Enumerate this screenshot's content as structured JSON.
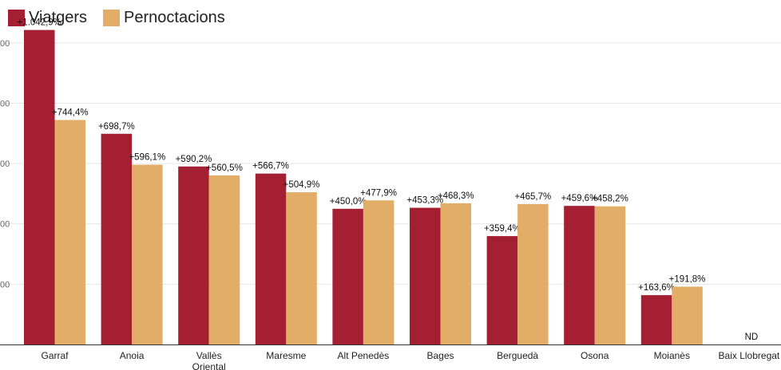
{
  "colors": {
    "viatgers": "#a51f32",
    "pernoctacions": "#e2ad66",
    "grid": "#e6e6e6",
    "axis": "#333333"
  },
  "chart_data": {
    "type": "bar",
    "title": "",
    "xlabel": "",
    "ylabel": "",
    "ylim": [
      0,
      1100
    ],
    "grid": true,
    "legend": "top-left",
    "y_ticks": [
      200,
      400,
      600,
      800,
      1000
    ],
    "y_tick_labels": [
      "00",
      "00",
      "00",
      "00",
      "00"
    ],
    "categories": [
      "Garraf",
      "Anoia",
      "Vallès Oriental",
      "Maresme",
      "Alt Penedès",
      "Bages",
      "Berguedà",
      "Osona",
      "Moianès",
      "Baix Llobregat"
    ],
    "category_lines": [
      [
        "Garraf"
      ],
      [
        "Anoia"
      ],
      [
        "Vallès",
        "Oriental"
      ],
      [
        "Maresme"
      ],
      [
        "Alt Penedès"
      ],
      [
        "Bages"
      ],
      [
        "Berguedà"
      ],
      [
        "Osona"
      ],
      [
        "Moianès"
      ],
      [
        "Baix Llobregat"
      ]
    ],
    "series": [
      {
        "name": "Viatgers",
        "values": [
          1042.9,
          698.7,
          590.2,
          566.7,
          450.0,
          453.3,
          359.4,
          459.6,
          163.6,
          null
        ],
        "labels": [
          "+1.042,9%",
          "+698,7%",
          "+590,2%",
          "+566,7%",
          "+450,0%",
          "+453,3%",
          "+359,4%",
          "+459,6%",
          "+163,6%",
          "ND"
        ]
      },
      {
        "name": "Pernoctacions",
        "values": [
          744.4,
          596.1,
          560.5,
          504.9,
          477.9,
          468.3,
          465.7,
          458.2,
          191.8,
          null
        ],
        "labels": [
          "+744,4%",
          "+596,1%",
          "+560,5%",
          "+504,9%",
          "+477,9%",
          "+468,3%",
          "+465,7%",
          "+458,2%",
          "+191,8%",
          ""
        ]
      }
    ]
  }
}
